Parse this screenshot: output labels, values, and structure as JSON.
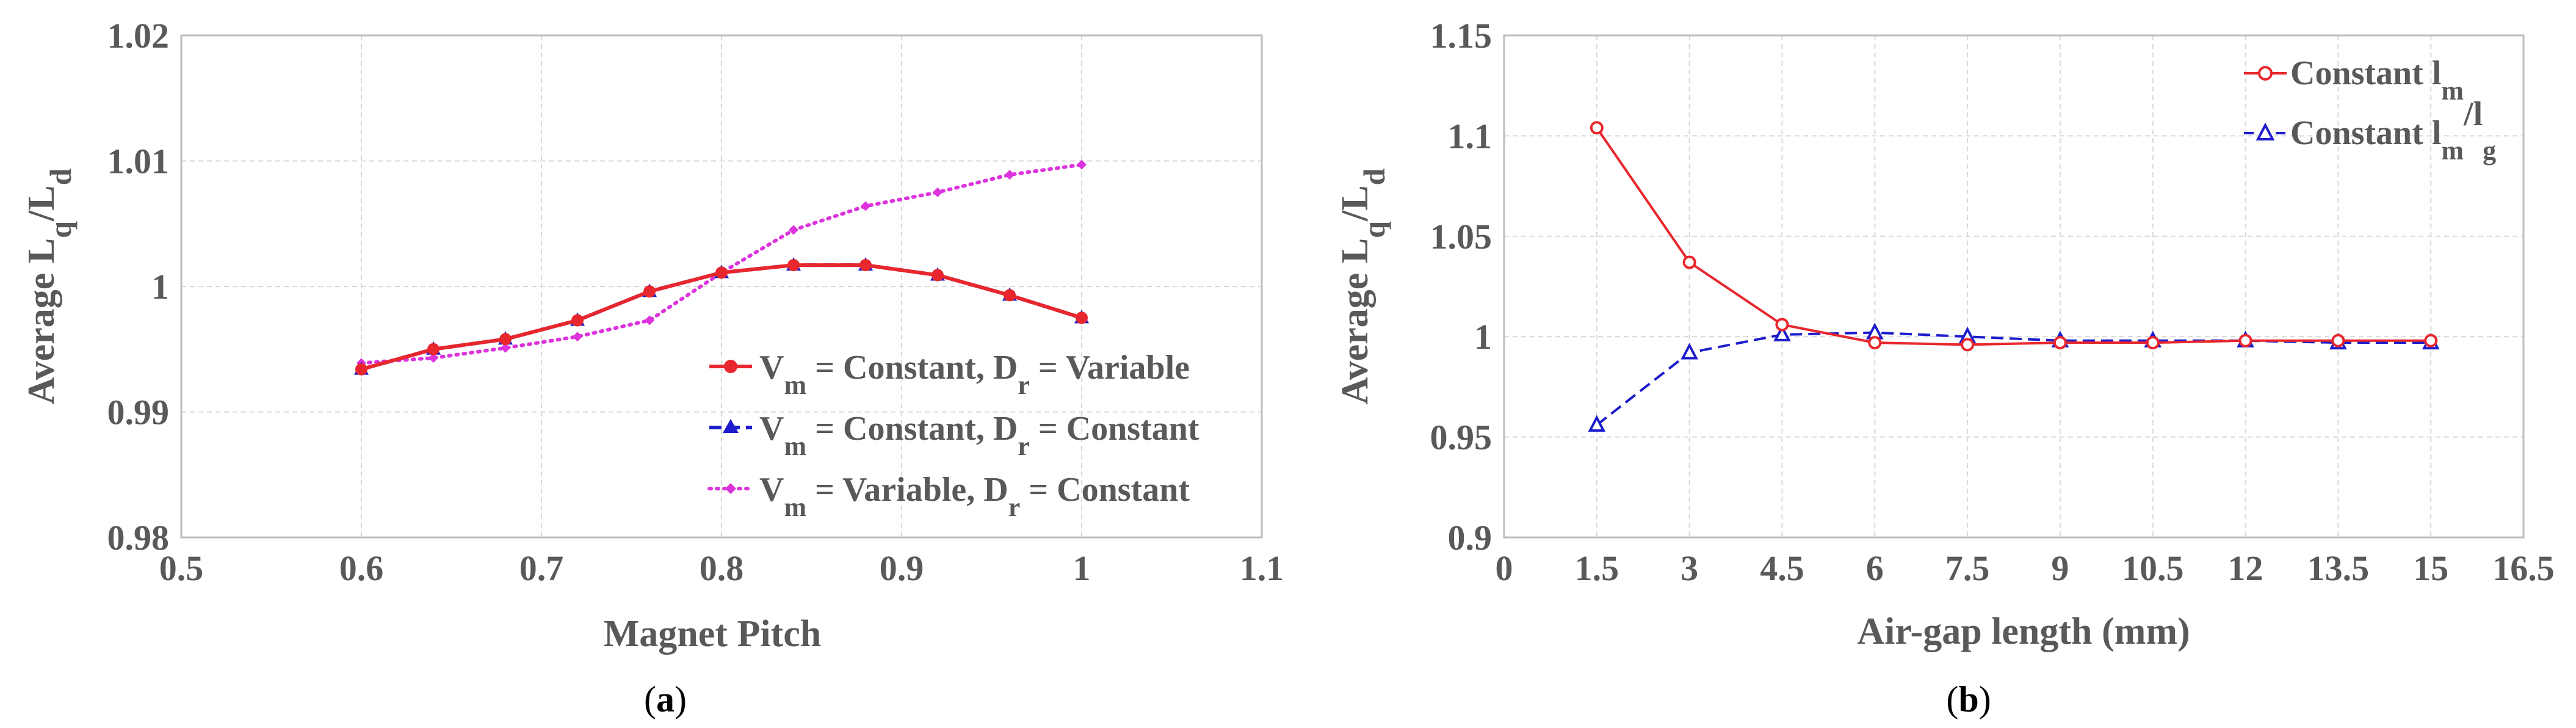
{
  "chart_data": [
    {
      "type": "line",
      "panel_label": "(a)",
      "panel_letter": "a",
      "xlabel": "Magnet Pitch",
      "ylabel": "Average L",
      "ylabel_sub1": "q",
      "ylabel_sep": "/L",
      "ylabel_sub2": "d",
      "xlim": [
        0.5,
        1.1
      ],
      "ylim": [
        0.98,
        1.02
      ],
      "xticks": [
        0.5,
        0.6,
        0.7,
        0.8,
        0.9,
        1.0,
        1.1
      ],
      "xtick_labels": [
        "0.5",
        "0.6",
        "0.7",
        "0.8",
        "0.9",
        "1",
        "1.1"
      ],
      "yticks": [
        0.98,
        0.99,
        1.0,
        1.01,
        1.02
      ],
      "ytick_labels": [
        "0.98",
        "0.99",
        "1",
        "1.01",
        "1.02"
      ],
      "grid": true,
      "legend_position": "bottom-right",
      "series": [
        {
          "legend_parts": [
            "V",
            "m",
            " = Constant, D",
            "r",
            " = Variable"
          ],
          "color": "#e8262d",
          "marker": "circle",
          "dash": "solid",
          "x": [
            0.6,
            0.64,
            0.68,
            0.72,
            0.76,
            0.8,
            0.84,
            0.88,
            0.92,
            0.96,
            1.0
          ],
          "values": [
            0.9934,
            0.995,
            0.9958,
            0.9973,
            0.9996,
            1.0011,
            1.0017,
            1.0017,
            1.0009,
            0.9993,
            0.9975
          ]
        },
        {
          "legend_parts": [
            "V",
            "m",
            " = Constant, D",
            "r",
            " = Constant"
          ],
          "color": "#1c1ccc",
          "marker": "triangle",
          "dash": "dashed",
          "x": [
            0.6,
            0.64,
            0.68,
            0.72,
            0.76,
            0.8,
            0.84,
            0.88,
            0.92,
            0.96,
            1.0
          ],
          "values": [
            0.9934,
            0.995,
            0.9958,
            0.9973,
            0.9996,
            1.0011,
            1.0017,
            1.0017,
            1.0009,
            0.9993,
            0.9975
          ]
        },
        {
          "legend_parts": [
            "V",
            "m",
            " = Variable, D",
            "r",
            " = Constant"
          ],
          "color": "#dd33dd",
          "marker": "diamond",
          "dash": "dotted",
          "x": [
            0.6,
            0.64,
            0.68,
            0.72,
            0.76,
            0.8,
            0.84,
            0.88,
            0.92,
            0.96,
            1.0
          ],
          "values": [
            0.9939,
            0.9943,
            0.9951,
            0.996,
            0.9973,
            1.0011,
            1.0045,
            1.0064,
            1.0075,
            1.0089,
            1.0097
          ]
        }
      ]
    },
    {
      "type": "line",
      "panel_label": "(b)",
      "panel_letter": "b",
      "xlabel": "Air-gap length (mm)",
      "ylabel": "Average L",
      "ylabel_sub1": "q",
      "ylabel_sep": "/L",
      "ylabel_sub2": "d",
      "xlim": [
        0,
        16.5
      ],
      "ylim": [
        0.9,
        1.15
      ],
      "xticks": [
        0,
        1.5,
        3,
        4.5,
        6,
        7.5,
        9,
        10.5,
        12,
        13.5,
        15,
        16.5
      ],
      "xtick_labels": [
        "0",
        "1.5",
        "3",
        "4.5",
        "6",
        "7.5",
        "9",
        "10.5",
        "12",
        "13.5",
        "15",
        "16.5"
      ],
      "yticks": [
        0.9,
        0.95,
        1.0,
        1.05,
        1.1,
        1.15
      ],
      "ytick_labels": [
        "0.9",
        "0.95",
        "1",
        "1.05",
        "1.1",
        "1.15"
      ],
      "grid": true,
      "legend_position": "top-right",
      "series": [
        {
          "legend_parts": [
            "Constant l",
            "m"
          ],
          "color": "#e8262d",
          "marker": "open-circle",
          "dash": "solid",
          "x": [
            1.5,
            3,
            4.5,
            6,
            7.5,
            9,
            10.5,
            12,
            13.5,
            15
          ],
          "values": [
            1.104,
            1.037,
            1.006,
            0.997,
            0.996,
            0.997,
            0.997,
            0.998,
            0.998,
            0.998
          ]
        },
        {
          "legend_parts": [
            "Constant l",
            "m",
            "/l",
            "g"
          ],
          "color": "#1c1ccc",
          "marker": "open-triangle",
          "dash": "dashed",
          "x": [
            1.5,
            3,
            4.5,
            6,
            7.5,
            9,
            10.5,
            12,
            13.5,
            15
          ],
          "values": [
            0.956,
            0.992,
            1.001,
            1.002,
            1.0,
            0.998,
            0.998,
            0.998,
            0.997,
            0.997
          ]
        }
      ]
    }
  ]
}
